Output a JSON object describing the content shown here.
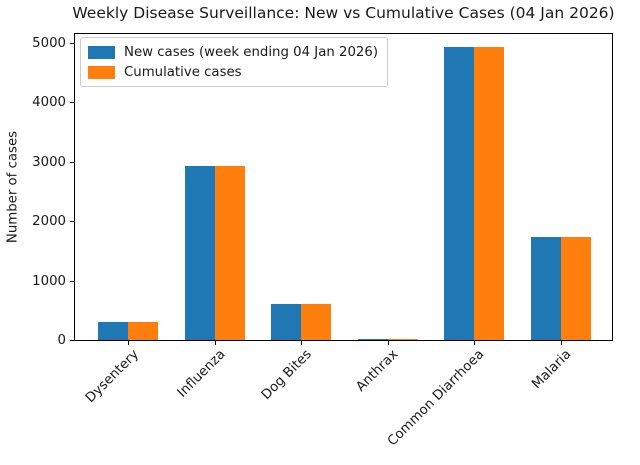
{
  "chart_data": {
    "type": "bar",
    "title": "Weekly Disease Surveillance: New vs Cumulative Cases (04 Jan 2026)",
    "xlabel": "",
    "ylabel": "Number of cases",
    "categories": [
      "Dysentery",
      "Influenza",
      "Dog Bites",
      "Anthrax",
      "Common Diarrhoea",
      "Malaria"
    ],
    "series": [
      {
        "name": "New cases (week ending 04 Jan 2026)",
        "color": "#1f77b4",
        "values": [
          320,
          2940,
          630,
          30,
          4950,
          1750
        ]
      },
      {
        "name": "Cumulative cases",
        "color": "#ff7f0e",
        "values": [
          320,
          2940,
          630,
          30,
          4950,
          1750
        ]
      }
    ],
    "yticks": [
      0,
      1000,
      2000,
      3000,
      4000,
      5000
    ],
    "ylim": [
      0,
      5185
    ],
    "grid": false,
    "legend_position": "upper left",
    "x_tick_rotation": 45
  },
  "colors": {
    "background": "#ffffff",
    "axis": "#000000",
    "text": "#1a1a1a",
    "legend_border": "#cccccc"
  }
}
